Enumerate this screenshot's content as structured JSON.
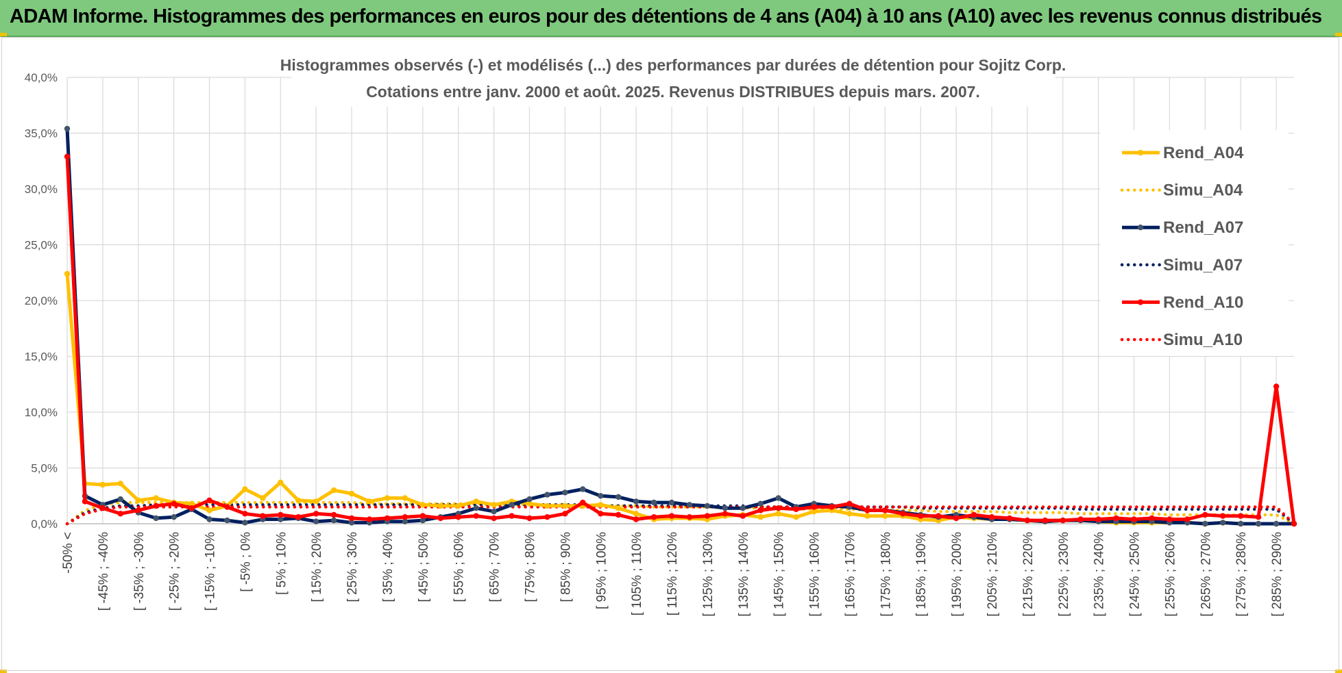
{
  "banner": {
    "title": "ADAM Informe. Histogrammes des performances en euros pour des détentions de 4 ans (A04) à 10 ans (A10) avec les revenus connus distribués",
    "background": "#7fc97f"
  },
  "chart_data": {
    "type": "line",
    "title": "Histogrammes observés (-) et modélisés (...) des performances par durées de détention pour Sojitz Corp.",
    "subtitle": "Cotations entre janv. 2000 et août. 2025. Revenus DISTRIBUES depuis mars. 2007.",
    "xlabel": "",
    "ylabel": "",
    "ylim": [
      0,
      40
    ],
    "y_ticks": [
      "0,0%",
      "5,0%",
      "10,0%",
      "15,0%",
      "20,0%",
      "25,0%",
      "30,0%",
      "35,0%",
      "40,0%"
    ],
    "grid": true,
    "legend_position": "right",
    "category_labels": [
      "-50% <",
      "[ -45% ; -40%",
      "[ -35% ; -30%",
      "[ -25% ; -20%",
      "[ -15% ; -10%",
      "[ -5% ; 0%",
      "[ 5% ; 10%",
      "[ 15% ; 20%",
      "[ 25% ; 30%",
      "[ 35% ; 40%",
      "[ 45% ; 50%",
      "[ 55% ; 60%",
      "[ 65% ; 70%",
      "[ 75% ; 80%",
      "[ 85% ; 90%",
      "[ 95% ; 100%",
      "[ 105% ; 110%",
      "[ 115% ; 120%",
      "[ 125% ; 130%",
      "[ 135% ; 140%",
      "[ 145% ; 150%",
      "[ 155% ; 160%",
      "[ 165% ; 170%",
      "[ 175% ; 180%",
      "[ 185% ; 190%",
      "[ 195% ; 200%",
      "[ 205% ; 210%",
      "[ 215% ; 220%",
      "[ 225% ; 230%",
      "[ 235% ; 240%",
      "[ 245% ; 250%",
      "[ 255% ; 260%",
      "[ 265% ; 270%",
      "[ 275% ; 280%",
      "[ 285% ; 290%"
    ],
    "n_points": 70,
    "series": [
      {
        "name": "Rend_A04",
        "style": "solid",
        "color": "#ffc000",
        "markers": true,
        "values": [
          22.4,
          3.6,
          3.5,
          3.6,
          2.1,
          2.3,
          1.9,
          1.8,
          1.2,
          1.6,
          3.1,
          2.3,
          3.7,
          2.1,
          2.0,
          3.0,
          2.7,
          2.0,
          2.3,
          2.3,
          1.7,
          1.6,
          1.6,
          2.0,
          1.7,
          2.0,
          1.8,
          1.6,
          1.6,
          1.6,
          1.7,
          1.4,
          0.9,
          0.4,
          0.5,
          0.5,
          0.4,
          0.7,
          0.8,
          0.6,
          0.9,
          0.6,
          1.1,
          1.2,
          0.9,
          0.7,
          0.7,
          0.7,
          0.4,
          0.3,
          0.6,
          0.5,
          0.4,
          0.4,
          0.3,
          0.2,
          0.3,
          0.3,
          0.2,
          0.1,
          0.1,
          0.1,
          0.1,
          0.1,
          0.0,
          0.1,
          0.0,
          0.0,
          0.0,
          0.0
        ]
      },
      {
        "name": "Simu_A04",
        "style": "dotted",
        "color": "#ffc000",
        "markers": false,
        "values": [
          0.0,
          1.2,
          1.7,
          1.9,
          1.9,
          1.9,
          1.9,
          1.9,
          1.9,
          1.9,
          1.9,
          1.9,
          1.9,
          1.9,
          1.9,
          1.9,
          1.9,
          1.8,
          1.8,
          1.8,
          1.8,
          1.8,
          1.8,
          1.8,
          1.7,
          1.7,
          1.7,
          1.7,
          1.7,
          1.6,
          1.6,
          1.6,
          1.6,
          1.5,
          1.5,
          1.5,
          1.5,
          1.4,
          1.4,
          1.4,
          1.4,
          1.3,
          1.3,
          1.3,
          1.3,
          1.2,
          1.2,
          1.2,
          1.2,
          1.1,
          1.1,
          1.1,
          1.1,
          1.0,
          1.0,
          1.0,
          1.0,
          0.9,
          0.9,
          0.9,
          0.9,
          0.9,
          0.8,
          0.8,
          0.8,
          0.8,
          0.8,
          0.8,
          0.8,
          0.0
        ]
      },
      {
        "name": "Rend_A07",
        "style": "solid",
        "color": "#002060",
        "markers": true,
        "values": [
          35.4,
          2.5,
          1.7,
          2.2,
          1.0,
          0.5,
          0.6,
          1.3,
          0.4,
          0.3,
          0.1,
          0.4,
          0.4,
          0.5,
          0.2,
          0.3,
          0.1,
          0.1,
          0.2,
          0.2,
          0.3,
          0.6,
          0.9,
          1.4,
          1.1,
          1.7,
          2.2,
          2.6,
          2.8,
          3.1,
          2.5,
          2.4,
          2.0,
          1.9,
          1.9,
          1.7,
          1.6,
          1.4,
          1.4,
          1.8,
          2.3,
          1.5,
          1.8,
          1.6,
          1.5,
          1.2,
          1.2,
          1.0,
          0.8,
          0.6,
          0.8,
          0.6,
          0.4,
          0.4,
          0.3,
          0.2,
          0.3,
          0.3,
          0.2,
          0.2,
          0.2,
          0.2,
          0.1,
          0.1,
          0.0,
          0.1,
          0.0,
          0.0,
          0.0,
          0.0
        ]
      },
      {
        "name": "Simu_A07",
        "style": "dotted",
        "color": "#002060",
        "markers": false,
        "values": [
          0.0,
          1.0,
          1.4,
          1.6,
          1.6,
          1.7,
          1.7,
          1.7,
          1.7,
          1.7,
          1.7,
          1.7,
          1.7,
          1.7,
          1.7,
          1.7,
          1.7,
          1.7,
          1.7,
          1.7,
          1.7,
          1.7,
          1.7,
          1.7,
          1.7,
          1.7,
          1.7,
          1.7,
          1.7,
          1.7,
          1.6,
          1.6,
          1.6,
          1.6,
          1.6,
          1.6,
          1.6,
          1.6,
          1.6,
          1.5,
          1.5,
          1.5,
          1.5,
          1.5,
          1.5,
          1.5,
          1.5,
          1.5,
          1.4,
          1.4,
          1.4,
          1.4,
          1.4,
          1.4,
          1.4,
          1.4,
          1.4,
          1.3,
          1.3,
          1.3,
          1.3,
          1.3,
          1.3,
          1.3,
          1.3,
          1.3,
          1.3,
          1.3,
          1.3,
          0.0
        ]
      },
      {
        "name": "Rend_A10",
        "style": "solid",
        "color": "#ff0000",
        "markers": true,
        "values": [
          32.9,
          2.0,
          1.4,
          0.9,
          1.2,
          1.6,
          1.8,
          1.4,
          2.1,
          1.5,
          0.9,
          0.7,
          0.8,
          0.6,
          0.9,
          0.8,
          0.5,
          0.4,
          0.5,
          0.6,
          0.7,
          0.5,
          0.6,
          0.7,
          0.5,
          0.7,
          0.5,
          0.6,
          0.9,
          1.9,
          0.9,
          0.8,
          0.4,
          0.6,
          0.7,
          0.6,
          0.7,
          0.9,
          0.7,
          1.2,
          1.4,
          1.3,
          1.5,
          1.5,
          1.8,
          1.2,
          1.2,
          0.9,
          0.7,
          0.7,
          0.5,
          0.8,
          0.6,
          0.5,
          0.3,
          0.3,
          0.3,
          0.4,
          0.4,
          0.5,
          0.4,
          0.5,
          0.4,
          0.4,
          0.8,
          0.7,
          0.7,
          0.6,
          12.3,
          0.0
        ]
      },
      {
        "name": "Simu_A10",
        "style": "dotted",
        "color": "#ff0000",
        "markers": false,
        "values": [
          0.0,
          0.9,
          1.3,
          1.5,
          1.5,
          1.5,
          1.5,
          1.5,
          1.5,
          1.5,
          1.5,
          1.5,
          1.5,
          1.5,
          1.5,
          1.5,
          1.5,
          1.5,
          1.5,
          1.5,
          1.5,
          1.5,
          1.5,
          1.5,
          1.5,
          1.5,
          1.5,
          1.5,
          1.5,
          1.5,
          1.5,
          1.5,
          1.5,
          1.5,
          1.5,
          1.5,
          1.5,
          1.5,
          1.5,
          1.5,
          1.5,
          1.5,
          1.5,
          1.5,
          1.5,
          1.5,
          1.5,
          1.5,
          1.5,
          1.5,
          1.5,
          1.5,
          1.5,
          1.5,
          1.5,
          1.5,
          1.5,
          1.5,
          1.5,
          1.5,
          1.5,
          1.5,
          1.5,
          1.5,
          1.5,
          1.5,
          1.5,
          1.5,
          1.5,
          0.0
        ]
      }
    ]
  }
}
